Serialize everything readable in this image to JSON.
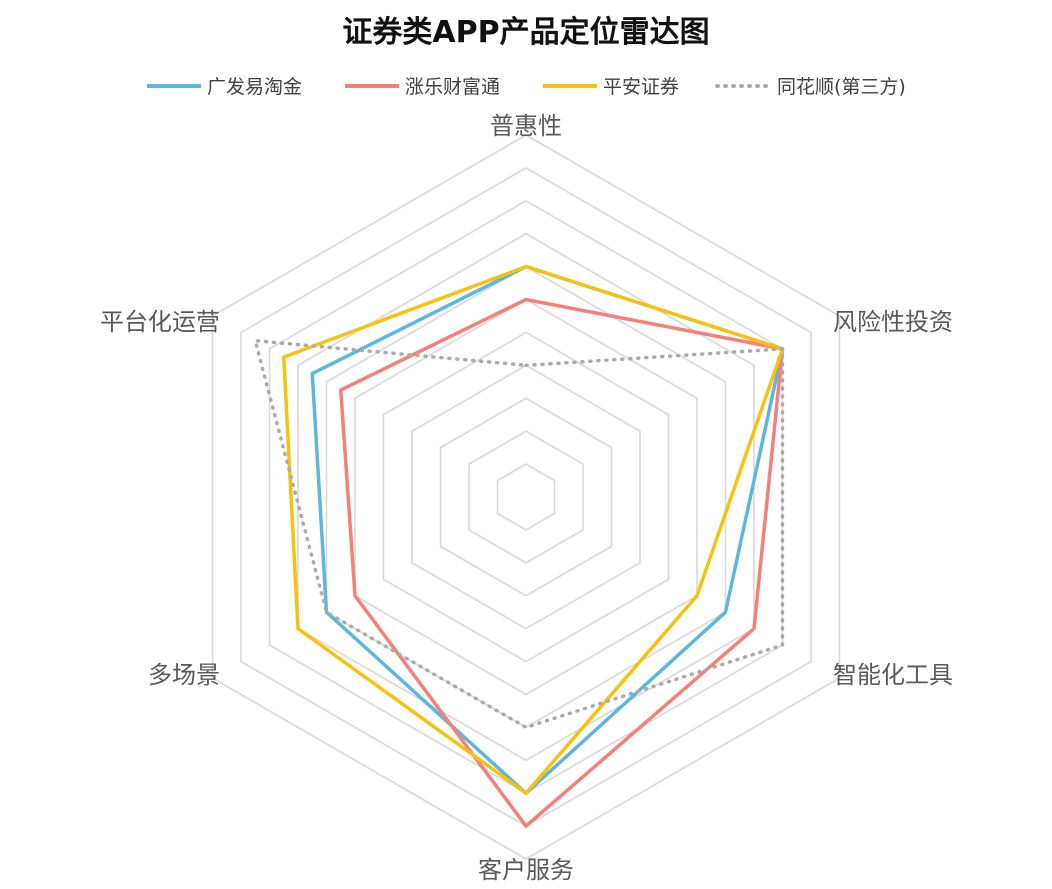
{
  "chart_data": {
    "type": "radar",
    "title": "证券类APP产品定位雷达图",
    "axes": [
      "普惠性",
      "风险性投资",
      "智能化工具",
      "客户服务",
      "多场景",
      "平台化运营"
    ],
    "rmax": 11,
    "rings": 11,
    "grid": true,
    "legend_position": "top",
    "series": [
      {
        "name": "广发易淘金",
        "color": "#5BB7DE",
        "dash": "solid",
        "values": [
          7.0,
          9.0,
          7.0,
          9.0,
          7.0,
          7.5
        ]
      },
      {
        "name": "涨乐财富通",
        "color": "#F47F7B",
        "dash": "solid",
        "values": [
          6.0,
          9.0,
          8.0,
          10.0,
          6.0,
          6.5
        ]
      },
      {
        "name": "平安证券",
        "color": "#F8C10E",
        "dash": "solid",
        "values": [
          7.0,
          9.0,
          6.0,
          9.0,
          8.0,
          8.5
        ]
      },
      {
        "name": "同花顺(第三方)",
        "color": "#AAAAAA",
        "dash": "dotted",
        "values": [
          4.0,
          9.0,
          9.0,
          7.0,
          7.0,
          9.5
        ]
      }
    ]
  }
}
